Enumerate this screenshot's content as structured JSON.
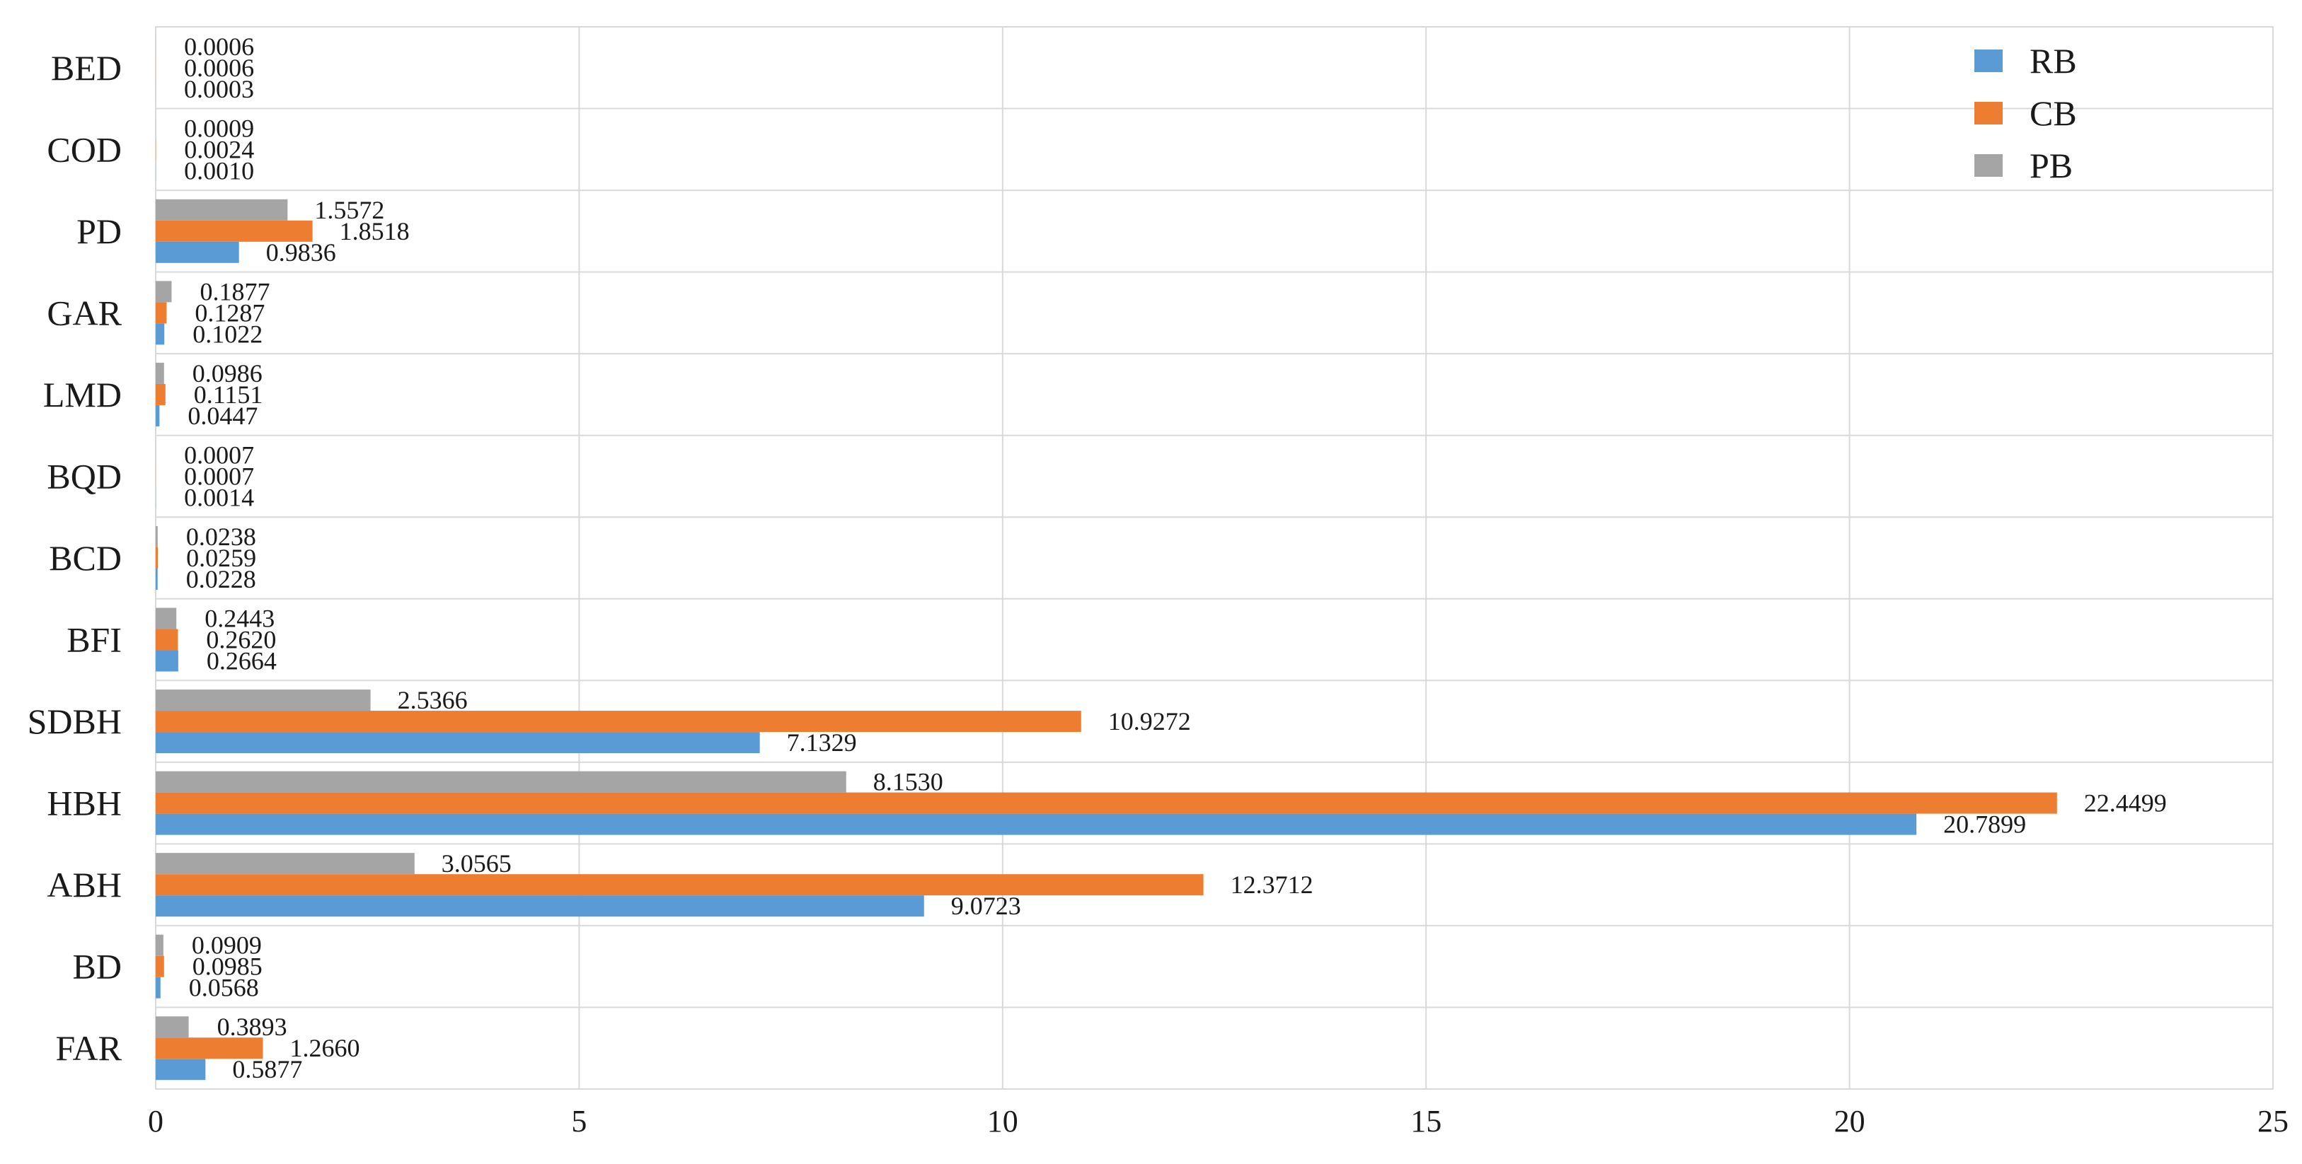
{
  "chart_data": {
    "type": "bar",
    "orientation": "horizontal",
    "title": "",
    "xlabel": "",
    "ylabel": "",
    "xlim": [
      0,
      25
    ],
    "x_ticks": [
      0,
      5,
      10,
      15,
      20,
      25
    ],
    "grid": "vertical",
    "legend_position": "top-right",
    "categories": [
      "BED",
      "COD",
      "PD",
      "GAR",
      "LMD",
      "BQD",
      "BCD",
      "BFI",
      "SDBH",
      "HBH",
      "ABH",
      "BD",
      "FAR"
    ],
    "series": [
      {
        "name": "RB",
        "color": "#5b9bd5",
        "values": [
          0.0003,
          0.001,
          0.9836,
          0.1022,
          0.0447,
          0.0014,
          0.0228,
          0.2664,
          7.1329,
          20.7899,
          9.0723,
          0.0568,
          0.5877
        ],
        "labels": [
          "0.0003",
          "0.0010",
          "0.9836",
          "0.1022",
          "0.0447",
          "0.0014",
          "0.0228",
          "0.2664",
          "7.1329",
          "20.7899",
          "9.0723",
          "0.0568",
          "0.5877"
        ]
      },
      {
        "name": "CB",
        "color": "#ed7d31",
        "values": [
          0.0006,
          0.0024,
          1.8518,
          0.1287,
          0.1151,
          0.0007,
          0.0259,
          0.262,
          10.9272,
          22.4499,
          12.3712,
          0.0985,
          1.266
        ],
        "labels": [
          "0.0006",
          "0.0024",
          "1.8518",
          "0.1287",
          "0.1151",
          "0.0007",
          "0.0259",
          "0.2620",
          "10.9272",
          "22.4499",
          "12.3712",
          "0.0985",
          "1.2660"
        ]
      },
      {
        "name": "PB",
        "color": "#a5a5a5",
        "values": [
          0.0006,
          0.0009,
          1.5572,
          0.1877,
          0.0986,
          0.0007,
          0.0238,
          0.2443,
          2.5366,
          8.153,
          3.0565,
          0.0909,
          0.3893
        ],
        "labels": [
          "0.0006",
          "0.0009",
          "1.5572",
          "0.1877",
          "0.0986",
          "0.0007",
          "0.0238",
          "0.2443",
          "2.5366",
          "8.1530",
          "3.0565",
          "0.0909",
          "0.3893"
        ]
      }
    ]
  }
}
